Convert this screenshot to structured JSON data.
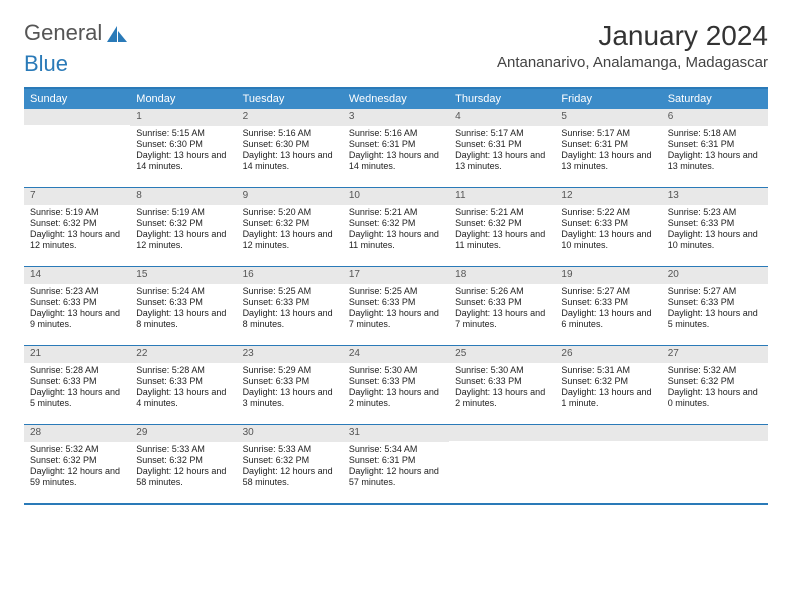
{
  "logo": {
    "text1": "General",
    "text2": "Blue"
  },
  "title": "January 2024",
  "location": "Antananarivo, Analamanga, Madagascar",
  "colors": {
    "header_bg": "#3b8bc8",
    "border": "#2a7ab8",
    "daynum_bg": "#e8e8e8"
  },
  "day_names": [
    "Sunday",
    "Monday",
    "Tuesday",
    "Wednesday",
    "Thursday",
    "Friday",
    "Saturday"
  ],
  "weeks": [
    [
      {
        "n": "",
        "sr": "",
        "ss": "",
        "dl": ""
      },
      {
        "n": "1",
        "sr": "5:15 AM",
        "ss": "6:30 PM",
        "dl": "13 hours and 14 minutes."
      },
      {
        "n": "2",
        "sr": "5:16 AM",
        "ss": "6:30 PM",
        "dl": "13 hours and 14 minutes."
      },
      {
        "n": "3",
        "sr": "5:16 AM",
        "ss": "6:31 PM",
        "dl": "13 hours and 14 minutes."
      },
      {
        "n": "4",
        "sr": "5:17 AM",
        "ss": "6:31 PM",
        "dl": "13 hours and 13 minutes."
      },
      {
        "n": "5",
        "sr": "5:17 AM",
        "ss": "6:31 PM",
        "dl": "13 hours and 13 minutes."
      },
      {
        "n": "6",
        "sr": "5:18 AM",
        "ss": "6:31 PM",
        "dl": "13 hours and 13 minutes."
      }
    ],
    [
      {
        "n": "7",
        "sr": "5:19 AM",
        "ss": "6:32 PM",
        "dl": "13 hours and 12 minutes."
      },
      {
        "n": "8",
        "sr": "5:19 AM",
        "ss": "6:32 PM",
        "dl": "13 hours and 12 minutes."
      },
      {
        "n": "9",
        "sr": "5:20 AM",
        "ss": "6:32 PM",
        "dl": "13 hours and 12 minutes."
      },
      {
        "n": "10",
        "sr": "5:21 AM",
        "ss": "6:32 PM",
        "dl": "13 hours and 11 minutes."
      },
      {
        "n": "11",
        "sr": "5:21 AM",
        "ss": "6:32 PM",
        "dl": "13 hours and 11 minutes."
      },
      {
        "n": "12",
        "sr": "5:22 AM",
        "ss": "6:33 PM",
        "dl": "13 hours and 10 minutes."
      },
      {
        "n": "13",
        "sr": "5:23 AM",
        "ss": "6:33 PM",
        "dl": "13 hours and 10 minutes."
      }
    ],
    [
      {
        "n": "14",
        "sr": "5:23 AM",
        "ss": "6:33 PM",
        "dl": "13 hours and 9 minutes."
      },
      {
        "n": "15",
        "sr": "5:24 AM",
        "ss": "6:33 PM",
        "dl": "13 hours and 8 minutes."
      },
      {
        "n": "16",
        "sr": "5:25 AM",
        "ss": "6:33 PM",
        "dl": "13 hours and 8 minutes."
      },
      {
        "n": "17",
        "sr": "5:25 AM",
        "ss": "6:33 PM",
        "dl": "13 hours and 7 minutes."
      },
      {
        "n": "18",
        "sr": "5:26 AM",
        "ss": "6:33 PM",
        "dl": "13 hours and 7 minutes."
      },
      {
        "n": "19",
        "sr": "5:27 AM",
        "ss": "6:33 PM",
        "dl": "13 hours and 6 minutes."
      },
      {
        "n": "20",
        "sr": "5:27 AM",
        "ss": "6:33 PM",
        "dl": "13 hours and 5 minutes."
      }
    ],
    [
      {
        "n": "21",
        "sr": "5:28 AM",
        "ss": "6:33 PM",
        "dl": "13 hours and 5 minutes."
      },
      {
        "n": "22",
        "sr": "5:28 AM",
        "ss": "6:33 PM",
        "dl": "13 hours and 4 minutes."
      },
      {
        "n": "23",
        "sr": "5:29 AM",
        "ss": "6:33 PM",
        "dl": "13 hours and 3 minutes."
      },
      {
        "n": "24",
        "sr": "5:30 AM",
        "ss": "6:33 PM",
        "dl": "13 hours and 2 minutes."
      },
      {
        "n": "25",
        "sr": "5:30 AM",
        "ss": "6:33 PM",
        "dl": "13 hours and 2 minutes."
      },
      {
        "n": "26",
        "sr": "5:31 AM",
        "ss": "6:32 PM",
        "dl": "13 hours and 1 minute."
      },
      {
        "n": "27",
        "sr": "5:32 AM",
        "ss": "6:32 PM",
        "dl": "13 hours and 0 minutes."
      }
    ],
    [
      {
        "n": "28",
        "sr": "5:32 AM",
        "ss": "6:32 PM",
        "dl": "12 hours and 59 minutes."
      },
      {
        "n": "29",
        "sr": "5:33 AM",
        "ss": "6:32 PM",
        "dl": "12 hours and 58 minutes."
      },
      {
        "n": "30",
        "sr": "5:33 AM",
        "ss": "6:32 PM",
        "dl": "12 hours and 58 minutes."
      },
      {
        "n": "31",
        "sr": "5:34 AM",
        "ss": "6:31 PM",
        "dl": "12 hours and 57 minutes."
      },
      {
        "n": "",
        "sr": "",
        "ss": "",
        "dl": ""
      },
      {
        "n": "",
        "sr": "",
        "ss": "",
        "dl": ""
      },
      {
        "n": "",
        "sr": "",
        "ss": "",
        "dl": ""
      }
    ]
  ],
  "labels": {
    "sunrise": "Sunrise: ",
    "sunset": "Sunset: ",
    "daylight": "Daylight: "
  }
}
